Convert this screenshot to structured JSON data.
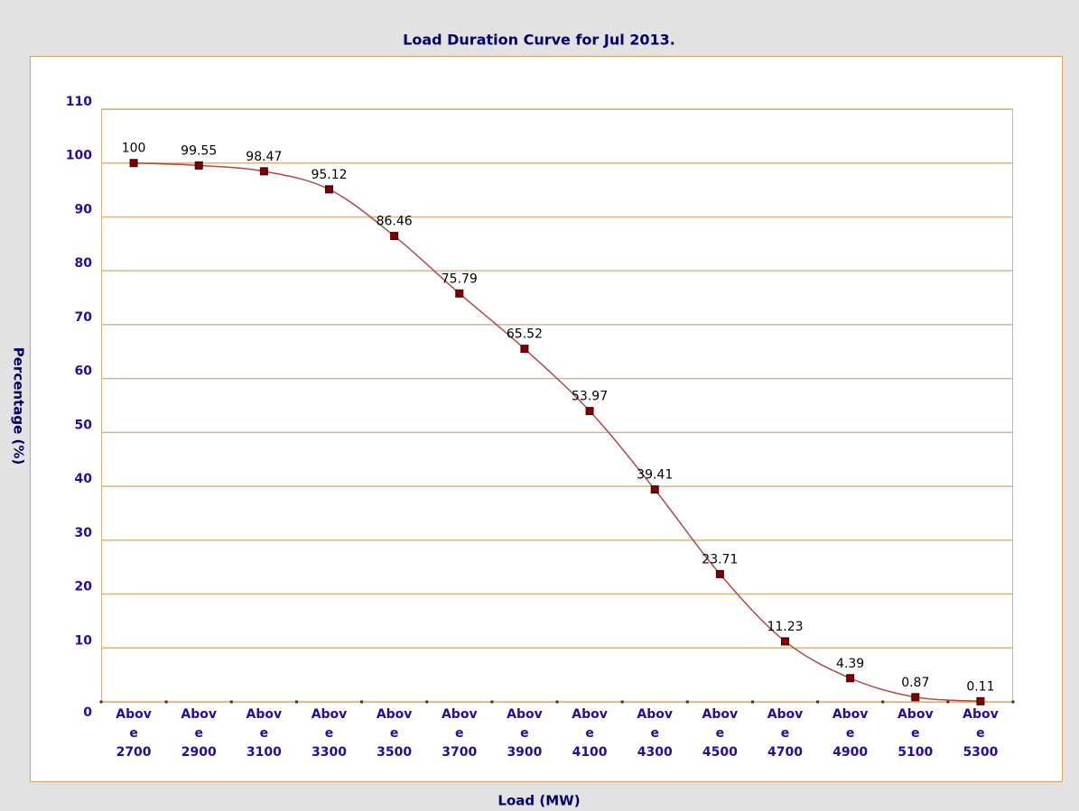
{
  "chart_data": {
    "type": "line",
    "title": "Load Duration Curve for Jul 2013.",
    "x_label": "Load (MW)",
    "y_label": "Percentage (%)",
    "categories": [
      "Above 2700",
      "Above 2900",
      "Above 3100",
      "Above 3300",
      "Above 3500",
      "Above 3700",
      "Above 3900",
      "Above 4100",
      "Above 4300",
      "Above 4500",
      "Above 4700",
      "Above 4900",
      "Above 5100",
      "Above 5300"
    ],
    "series": [
      {
        "name": "Percentage",
        "color": "#b04848",
        "values": [
          100,
          99.55,
          98.47,
          95.12,
          86.46,
          75.79,
          65.52,
          53.97,
          39.41,
          23.71,
          11.23,
          4.39,
          0.87,
          0.11
        ]
      }
    ],
    "ylim": [
      0,
      110
    ],
    "yticks": [
      0,
      10,
      20,
      30,
      40,
      50,
      60,
      70,
      80,
      90,
      100,
      110
    ],
    "grid": true
  }
}
